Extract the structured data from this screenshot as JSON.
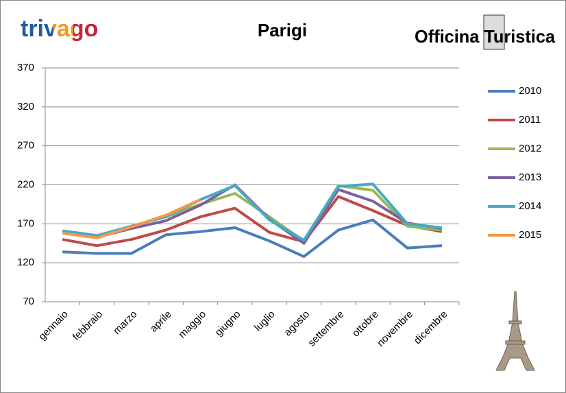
{
  "chart_data": {
    "type": "line",
    "title": "Parigi",
    "annotations": [
      "trivago",
      "Officina Turistica"
    ],
    "categories": [
      "gennaio",
      "febbraio",
      "marzo",
      "aprile",
      "maggio",
      "giugno",
      "luglio",
      "agosto",
      "settembre",
      "ottobre",
      "novembre",
      "dicembre"
    ],
    "series": [
      {
        "name": "2010",
        "color": "#4a7ebb",
        "values": [
          134,
          132,
          132,
          156,
          160,
          165,
          148,
          128,
          162,
          175,
          139,
          142
        ]
      },
      {
        "name": "2011",
        "color": "#be4b48",
        "values": [
          150,
          142,
          150,
          162,
          179,
          190,
          159,
          147,
          205,
          187,
          168,
          160
        ]
      },
      {
        "name": "2012",
        "color": "#98b954",
        "values": [
          160,
          154,
          167,
          179,
          195,
          209,
          179,
          148,
          219,
          213,
          167,
          162
        ]
      },
      {
        "name": "2013",
        "color": "#7d60a0",
        "values": [
          160,
          153,
          164,
          174,
          194,
          220,
          176,
          145,
          214,
          199,
          171,
          164
        ]
      },
      {
        "name": "2014",
        "color": "#46aac5",
        "values": [
          161,
          155,
          167,
          179,
          201,
          219,
          175,
          149,
          218,
          221,
          170,
          165
        ]
      },
      {
        "name": "2015",
        "color": "#f79646",
        "values": [
          158,
          152,
          166,
          181,
          201,
          null,
          null,
          null,
          null,
          null,
          null,
          null
        ]
      }
    ],
    "ylim": [
      70,
      370
    ],
    "yticks": [
      70,
      120,
      170,
      220,
      270,
      320,
      370
    ],
    "grid": true,
    "legend": "right"
  }
}
